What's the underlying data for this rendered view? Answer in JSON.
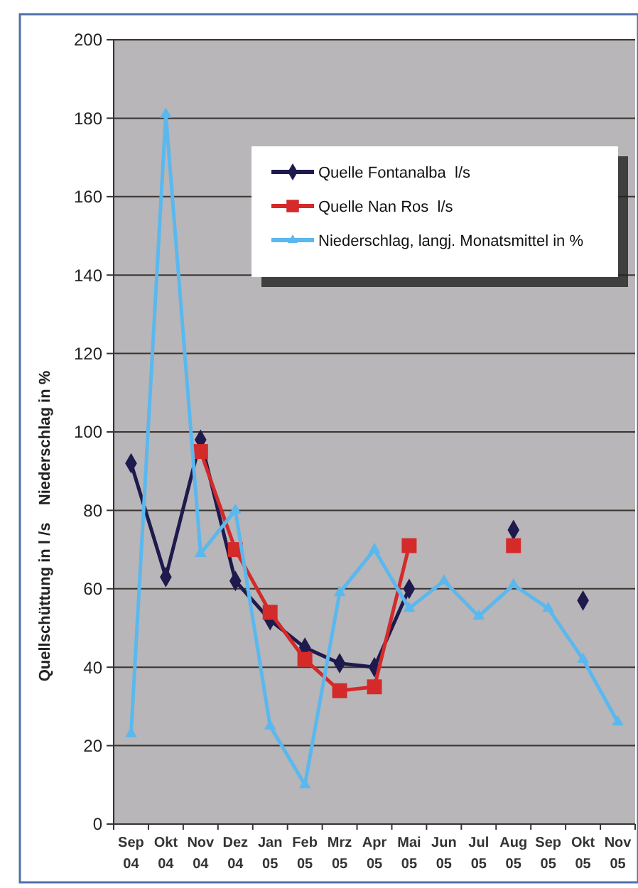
{
  "chart_data": {
    "type": "line",
    "ylabel": "Quellschüttung in l /s    Niederschlag in %",
    "categories": [
      "Sep 04",
      "Okt 04",
      "Nov 04",
      "Dez 04",
      "Jan 05",
      "Feb 05",
      "Mrz 05",
      "Apr 05",
      "Mai 05",
      "Jun 05",
      "Jul 05",
      "Aug 05",
      "Sep 05",
      "Okt 05",
      "Nov 05"
    ],
    "series": [
      {
        "name": "Quelle Fontanalba  l/s",
        "color": "#1f1a4d",
        "marker": "diamond",
        "values": [
          92,
          63,
          98,
          62,
          52,
          45,
          41,
          40,
          60,
          null,
          null,
          75,
          null,
          57,
          null
        ]
      },
      {
        "name": "Quelle Nan Ros  l/s",
        "color": "#d42a2a",
        "marker": "square",
        "values": [
          null,
          null,
          95,
          70,
          54,
          42,
          34,
          35,
          71,
          null,
          null,
          71,
          null,
          null,
          null
        ]
      },
      {
        "name": "Niederschlag, langj. Monatsmittel in %",
        "color": "#5bb8ee",
        "marker": "triangle",
        "values": [
          23,
          181,
          69,
          80,
          25,
          10,
          59,
          70,
          55,
          62,
          53,
          61,
          55,
          42,
          26
        ]
      }
    ],
    "ylim": [
      0,
      200
    ],
    "yticks": [
      0,
      20,
      40,
      60,
      80,
      100,
      120,
      140,
      160,
      180,
      200
    ],
    "grid": "y",
    "legend": "top right"
  }
}
